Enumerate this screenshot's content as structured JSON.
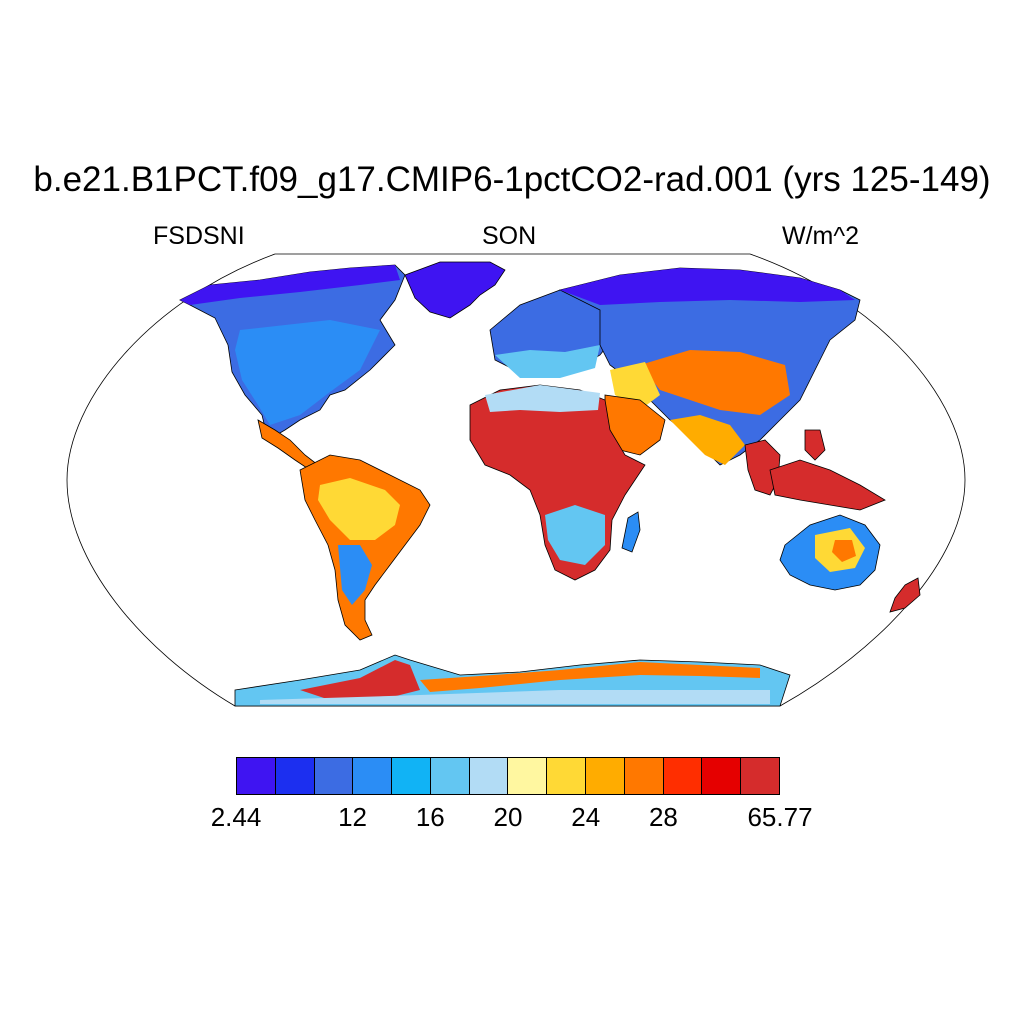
{
  "title": "b.e21.B1PCT.f09_g17.CMIP6-1pctCO2-rad.001 (yrs 125-149)",
  "subtitle_left": "FSDSNI",
  "subtitle_center": "SON",
  "subtitle_right": "W/m^2",
  "colorbar": {
    "colors": [
      "#3f14f2",
      "#1c2ff0",
      "#3c6ce3",
      "#2b8df5",
      "#11b3f5",
      "#63c6f2",
      "#b2dcf5",
      "#fff7a0",
      "#ffd935",
      "#ffac00",
      "#ff7800",
      "#ff2e00",
      "#e50000",
      "#d52c2c"
    ],
    "labels": [
      {
        "text": "2.44",
        "boundary": 0
      },
      {
        "text": "12",
        "boundary": 3
      },
      {
        "text": "16",
        "boundary": 5
      },
      {
        "text": "20",
        "boundary": 7
      },
      {
        "text": "24",
        "boundary": 9
      },
      {
        "text": "28",
        "boundary": 11
      },
      {
        "text": "65.77",
        "boundary": 14
      }
    ]
  }
}
